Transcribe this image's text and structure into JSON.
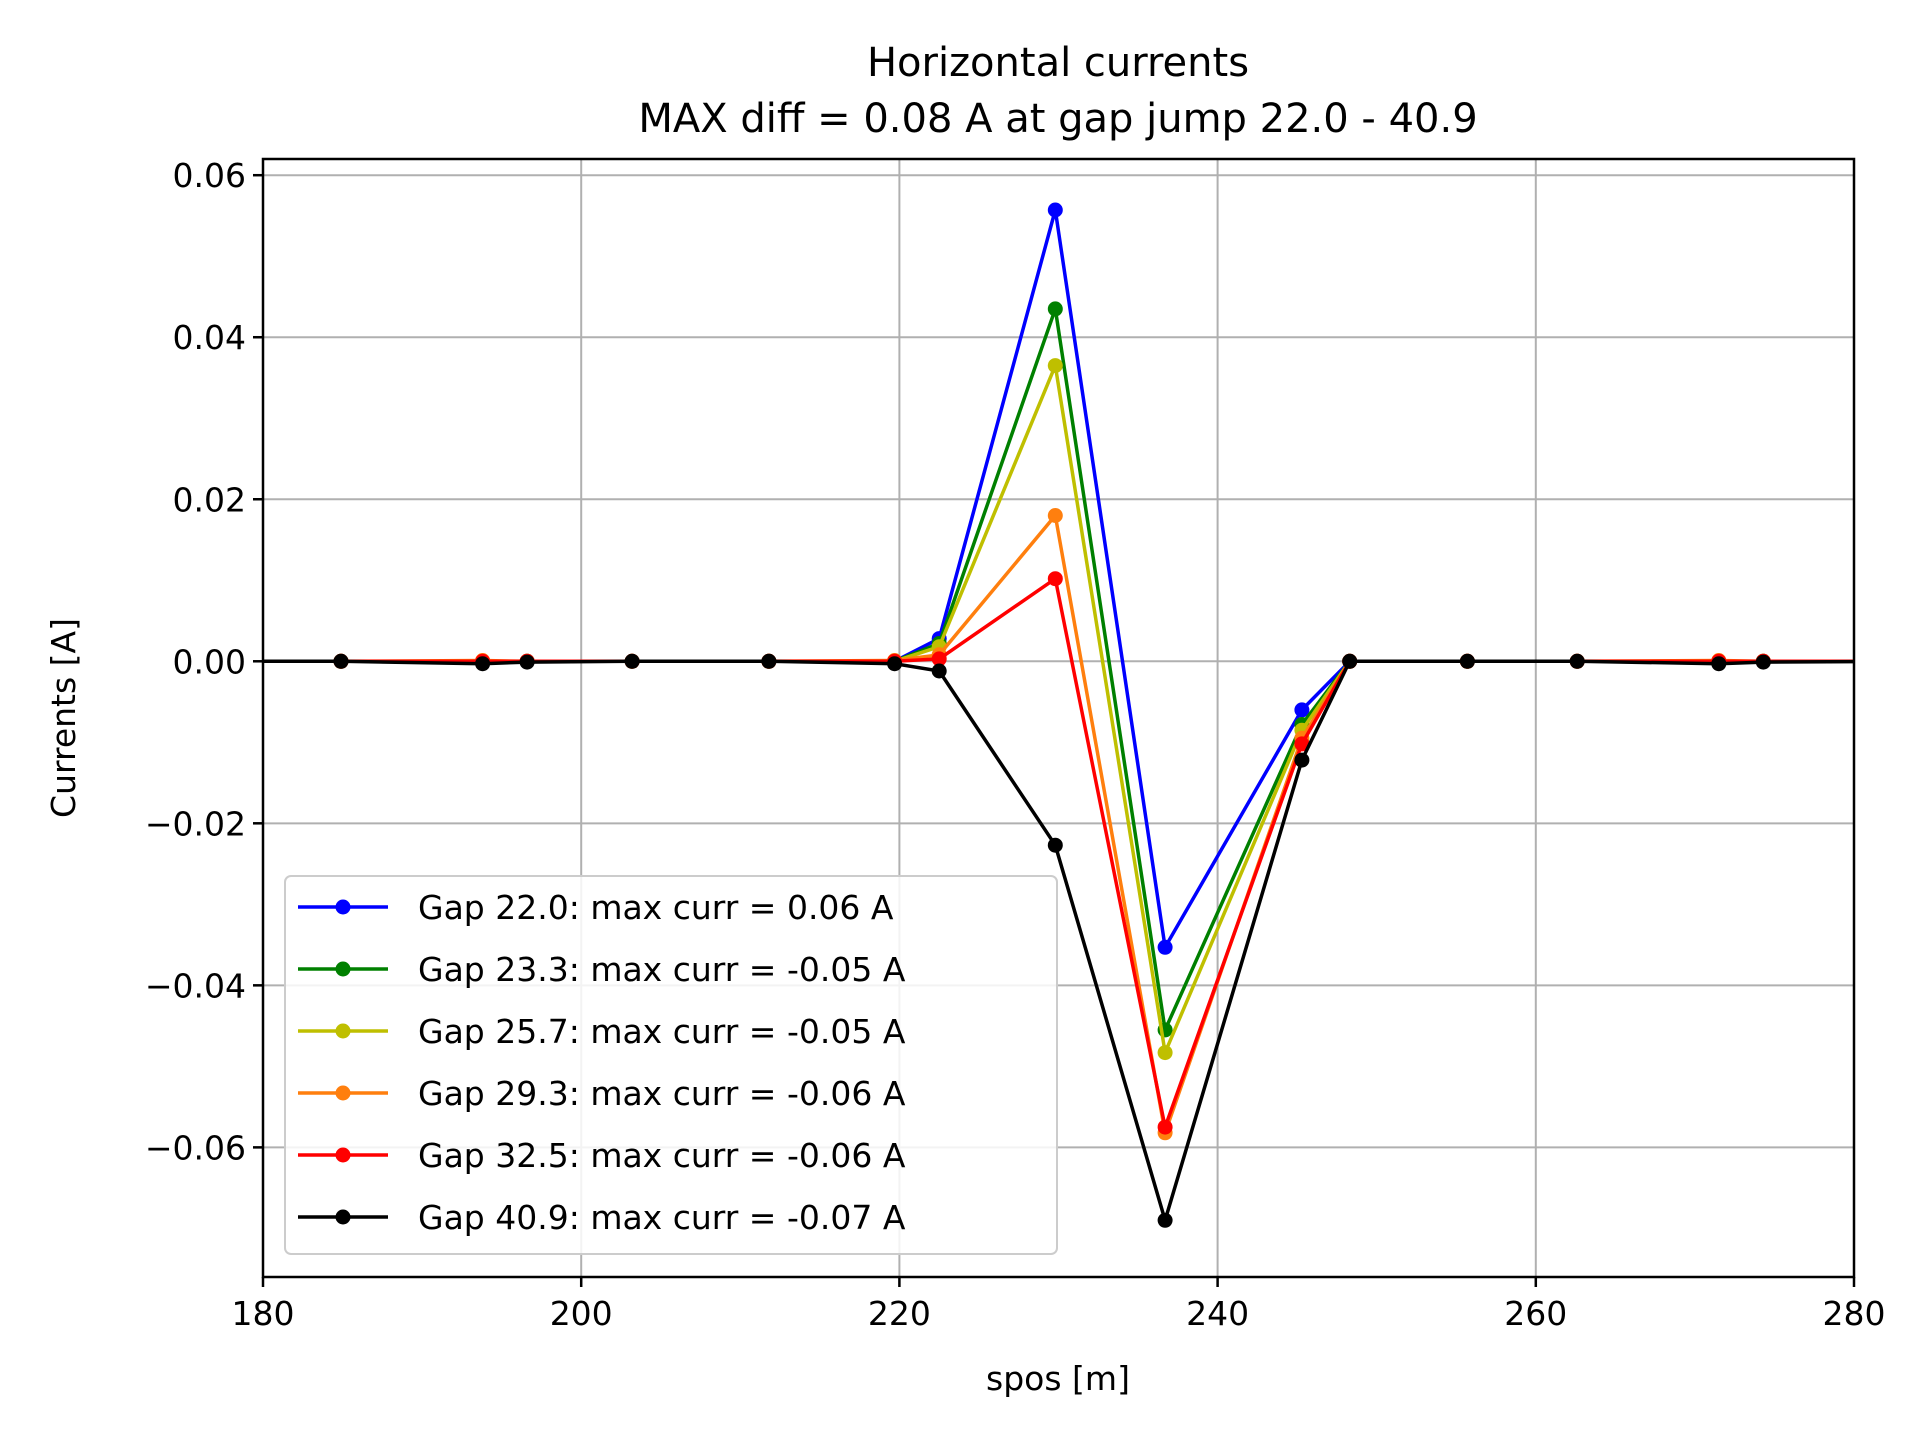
{
  "chart_data": {
    "type": "line",
    "title": "Horizontal currents",
    "subtitle": "MAX diff = 0.08 A at gap jump 22.0 - 40.9",
    "xlabel": "spos [m]",
    "ylabel": "Currents [A]",
    "xlim": [
      180,
      280
    ],
    "ylim": [
      -0.076,
      0.062
    ],
    "xticks": [
      180,
      200,
      220,
      240,
      260,
      280
    ],
    "xtick_labels": [
      "180",
      "200",
      "220",
      "240",
      "260",
      "280"
    ],
    "yticks": [
      -0.06,
      -0.04,
      -0.02,
      0.0,
      0.02,
      0.04,
      0.06
    ],
    "ytick_labels": [
      "−0.06",
      "−0.04",
      "−0.02",
      "0.00",
      "0.02",
      "0.04",
      "0.06"
    ],
    "grid": true,
    "legend_position": "lower-left",
    "x": [
      176.5,
      184.9,
      193.8,
      196.6,
      203.2,
      211.8,
      219.7,
      222.5,
      229.8,
      236.7,
      245.3,
      248.3,
      255.7,
      262.6,
      271.5,
      274.3,
      283
    ],
    "series": [
      {
        "name": "Gap 22.0: max curr = 0.06 A",
        "color": "#0000ff",
        "values": [
          0,
          0,
          0,
          0,
          0,
          0,
          0,
          0.0028,
          0.0557,
          -0.0353,
          -0.006,
          0,
          0,
          0,
          0,
          0,
          0
        ]
      },
      {
        "name": "Gap 23.3: max curr = -0.05 A",
        "color": "#008000",
        "values": [
          0,
          0,
          0,
          0,
          0,
          0,
          0,
          0.0022,
          0.0435,
          -0.0455,
          -0.0078,
          0,
          0,
          0,
          0,
          0,
          0
        ]
      },
      {
        "name": "Gap 25.7: max curr = -0.05 A",
        "color": "#bfbf00",
        "values": [
          0,
          0,
          0,
          0,
          0,
          0,
          0,
          0.0018,
          0.0365,
          -0.0483,
          -0.0085,
          0,
          0,
          0,
          0,
          0,
          0
        ]
      },
      {
        "name": "Gap 29.3: max curr = -0.06 A",
        "color": "#ff7f0e",
        "values": [
          0,
          0,
          0.0001,
          0,
          0,
          0,
          0.0001,
          0.0008,
          0.018,
          -0.0582,
          -0.0095,
          0,
          0,
          0,
          0.0001,
          0,
          0
        ]
      },
      {
        "name": "Gap 32.5: max curr = -0.06 A",
        "color": "#ff0000",
        "values": [
          0,
          0,
          0,
          0,
          0,
          0,
          0,
          0.0003,
          0.0102,
          -0.0575,
          -0.0102,
          0,
          0,
          0,
          0,
          0,
          0
        ]
      },
      {
        "name": "Gap 40.9: max curr = -0.07 A",
        "color": "#000000",
        "values": [
          0,
          0,
          -0.0003,
          -0.0001,
          0,
          0,
          -0.0003,
          -0.0012,
          -0.0227,
          -0.069,
          -0.0122,
          0,
          0,
          0,
          -0.0003,
          -0.0001,
          0
        ]
      }
    ]
  }
}
